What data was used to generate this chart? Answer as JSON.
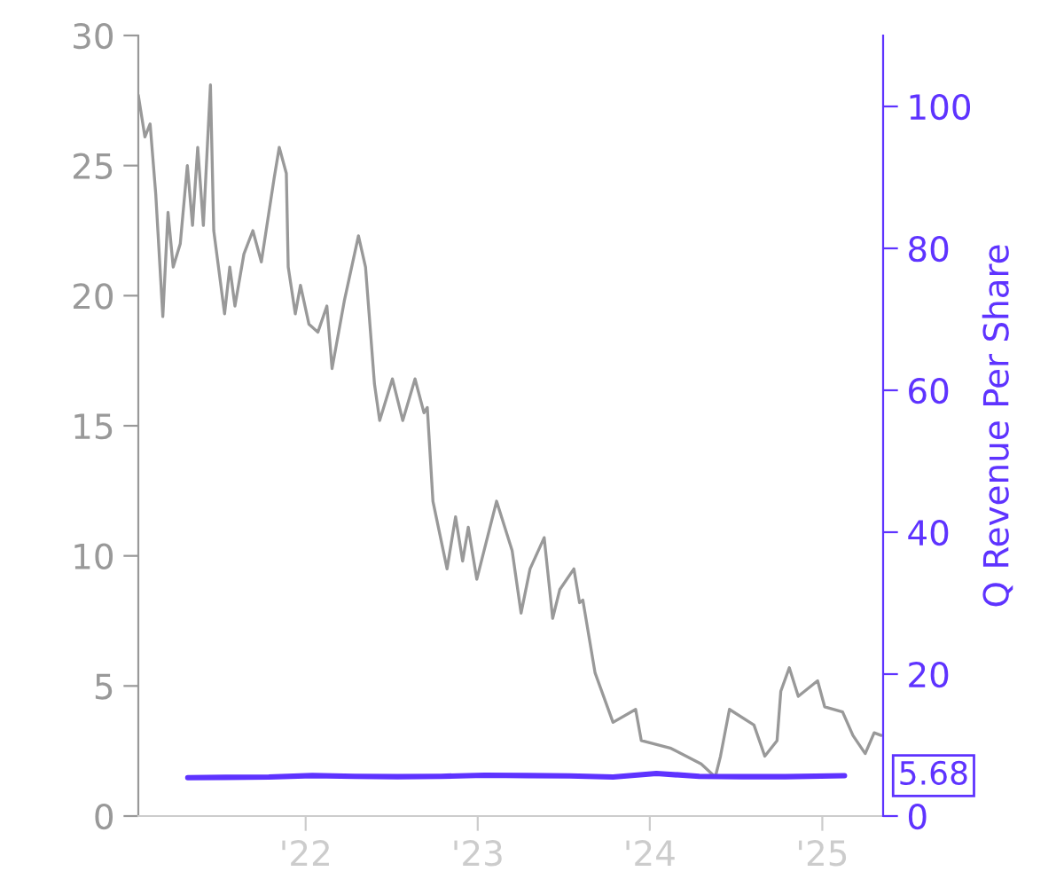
{
  "chart_data": {
    "type": "line",
    "y2label": "Q Revenue Per Share",
    "x": [
      "2021-01-11",
      "2021-01-25",
      "2021-02-05",
      "2021-02-17",
      "2021-03-04",
      "2021-03-15",
      "2021-03-26",
      "2021-04-10",
      "2021-04-25",
      "2021-05-06",
      "2021-05-17",
      "2021-05-29",
      "2021-06-13",
      "2021-06-20",
      "2021-07-13",
      "2021-07-24",
      "2021-08-04",
      "2021-08-23",
      "2021-09-11",
      "2021-09-29",
      "2021-10-26",
      "2021-11-06",
      "2021-11-21",
      "2021-11-25",
      "2021-12-10",
      "2021-12-21",
      "2022-01-08",
      "2022-01-27",
      "2022-02-15",
      "2022-02-26",
      "2022-03-24",
      "2022-04-23",
      "2022-05-08",
      "2022-05-27",
      "2022-06-07",
      "2022-07-04",
      "2022-07-26",
      "2022-08-21",
      "2022-09-09",
      "2022-09-16",
      "2022-09-28",
      "2022-10-28",
      "2022-11-15",
      "2022-11-30",
      "2022-12-12",
      "2022-12-30",
      "2023-02-10",
      "2023-03-15",
      "2023-04-03",
      "2023-04-22",
      "2023-05-22",
      "2023-06-09",
      "2023-06-24",
      "2023-07-24",
      "2023-08-05",
      "2023-08-12",
      "2023-09-07",
      "2023-10-15",
      "2023-12-02",
      "2023-12-14",
      "2024-02-15",
      "2024-04-19",
      "2024-05-19",
      "2024-05-30",
      "2024-06-18",
      "2024-08-09",
      "2024-09-01",
      "2024-09-27",
      "2024-10-05",
      "2024-10-23",
      "2024-11-11",
      "2024-12-22",
      "2025-01-06",
      "2025-02-13",
      "2025-03-07",
      "2025-04-02",
      "2025-04-21",
      "2025-05-06"
    ],
    "series": [
      {
        "color": "#999999",
        "values": [
          27.7,
          26.1,
          26.6,
          23.9,
          19.2,
          23.2,
          21.1,
          22.0,
          25.0,
          22.7,
          25.7,
          22.7,
          28.1,
          22.5,
          19.3,
          21.1,
          19.6,
          21.6,
          22.5,
          21.3,
          24.5,
          25.7,
          24.7,
          21.1,
          19.3,
          20.4,
          18.9,
          18.6,
          19.6,
          17.2,
          19.8,
          22.3,
          21.1,
          16.6,
          15.2,
          16.8,
          15.2,
          16.8,
          15.5,
          15.7,
          12.1,
          9.5,
          11.5,
          9.8,
          11.1,
          9.1,
          12.1,
          10.2,
          7.8,
          9.5,
          10.7,
          7.6,
          8.7,
          9.5,
          8.2,
          8.3,
          5.5,
          3.6,
          4.1,
          2.9,
          2.6,
          2.0,
          1.5,
          2.3,
          4.1,
          3.5,
          2.3,
          2.9,
          4.8,
          5.7,
          4.6,
          5.2,
          4.2,
          4.0,
          3.1,
          2.4,
          3.2,
          3.1
        ]
      },
      {
        "color": "#5e33ff",
        "axis": "y2",
        "x": [
          "2021-04-26",
          "2021-07-15",
          "2021-10-15",
          "2022-01-15",
          "2022-04-15",
          "2022-07-15",
          "2022-10-15",
          "2023-01-15",
          "2023-04-15",
          "2023-07-15",
          "2023-10-15",
          "2024-01-15",
          "2024-04-15",
          "2024-07-15",
          "2024-10-15",
          "2025-02-17"
        ],
        "values": [
          5.4,
          5.45,
          5.5,
          5.7,
          5.6,
          5.55,
          5.6,
          5.75,
          5.7,
          5.65,
          5.5,
          6.0,
          5.6,
          5.55,
          5.55,
          5.68
        ],
        "value_labels": [
          null,
          null,
          null,
          null,
          null,
          null,
          null,
          null,
          null,
          null,
          null,
          null,
          null,
          null,
          null,
          "5.68"
        ]
      }
    ],
    "xlim": [
      "2021-01-11",
      "2025-05-10"
    ],
    "xticks": [
      {
        "value": "2022-01-01",
        "label": "'22"
      },
      {
        "value": "2023-01-01",
        "label": "'23"
      },
      {
        "value": "2024-01-01",
        "label": "'24"
      },
      {
        "value": "2025-01-01",
        "label": "'25"
      }
    ],
    "ylim": [
      0,
      30
    ],
    "yticks": [
      0,
      5,
      10,
      15,
      20,
      25,
      30
    ],
    "y2lim": [
      0,
      110
    ],
    "y2ticks": [
      0,
      20,
      40,
      60,
      80,
      100
    ],
    "grid": false
  }
}
